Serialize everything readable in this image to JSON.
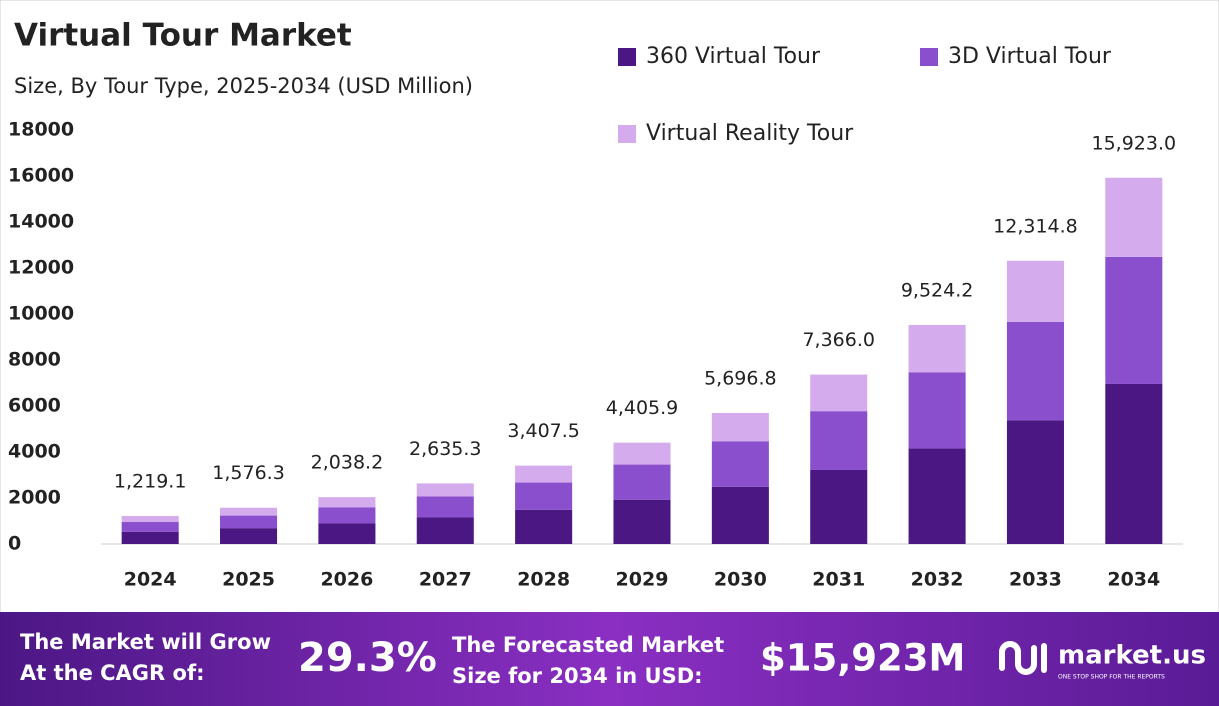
{
  "chart_data": {
    "type": "stacked_bar",
    "title": "Virtual Tour Market",
    "subtitle": "Size, By Tour Type, 2025-2034 (USD Million)",
    "categories": [
      "2024",
      "2025",
      "2026",
      "2027",
      "2028",
      "2029",
      "2030",
      "2031",
      "2032",
      "2033",
      "2034"
    ],
    "series": [
      {
        "name": "360 Virtual Tour",
        "color": "#4b1782",
        "values": [
          532.7,
          688.8,
          890.7,
          1151.6,
          1489.1,
          1925.4,
          2489.5,
          3218.9,
          4162.1,
          5381.6,
          6958.4
        ]
      },
      {
        "name": "3D Virtual Tour",
        "color": "#8a4fcc",
        "values": [
          423.0,
          547.0,
          707.3,
          914.4,
          1182.4,
          1528.8,
          1976.8,
          2556.0,
          3304.9,
          4273.2,
          5525.3
        ]
      },
      {
        "name": "Virtual Reality Tour",
        "color": "#d4aced",
        "values": [
          263.4,
          340.5,
          440.2,
          569.3,
          736.0,
          951.7,
          1230.5,
          1591.1,
          2057.2,
          2660.0,
          3439.3
        ]
      }
    ],
    "totals": {
      "values": [
        1219.1,
        1576.3,
        2038.2,
        2635.3,
        3407.5,
        4405.9,
        5696.8,
        7366.0,
        9524.2,
        12314.8,
        15923.0
      ],
      "value_labels": [
        "1,219.1",
        "1,576.3",
        "2,038.2",
        "2,635.3",
        "3,407.5",
        "4,405.9",
        "5,696.8",
        "7,366.0",
        "9,524.2",
        "12,314.8",
        "15,923.0"
      ]
    },
    "ylim": [
      0,
      18000
    ],
    "yticks": [
      0,
      2000,
      4000,
      6000,
      8000,
      10000,
      12000,
      14000,
      16000,
      18000
    ],
    "grid": false,
    "legend": "top-right"
  },
  "footer": {
    "cagr_label": [
      "The Market will Grow",
      "At the CAGR of:"
    ],
    "cagr": "29.3%",
    "forecast_label": [
      "The Forecasted Market",
      "Size for 2034 in USD:"
    ],
    "forecast": "$15,923M",
    "brand": "market.us",
    "tagline": "ONE STOP SHOP FOR THE REPORTS"
  }
}
